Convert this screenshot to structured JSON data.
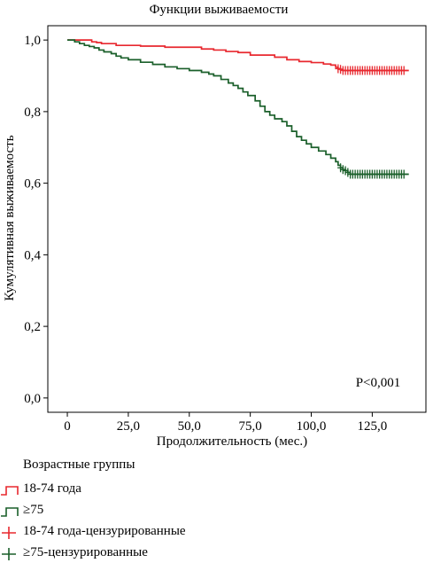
{
  "chart_data": {
    "type": "line",
    "title": "Функции выживаемости",
    "xlabel": "Продолжительность (мес.)",
    "ylabel": "Кумулятивная выживаемость",
    "xlim": [
      -8,
      147
    ],
    "ylim": [
      -0.04,
      1.04
    ],
    "xticks": [
      0,
      25,
      50,
      75,
      100,
      125
    ],
    "xtick_labels": [
      "0",
      "25,0",
      "50,0",
      "75,0",
      "100,0",
      "125,0"
    ],
    "yticks": [
      0,
      0.2,
      0.4,
      0.6,
      0.8,
      1.0
    ],
    "ytick_labels": [
      "0,0",
      "0,2",
      "0,4",
      "0,6",
      "0,8",
      "1,0"
    ],
    "annotation": "P<0,001",
    "grid": false,
    "legend_title": "Возрастные группы",
    "legend_position": "bottom-left",
    "series": [
      {
        "name": "18-74 года",
        "color": "#e8282f",
        "x": [
          0,
          8,
          10,
          12,
          14,
          20,
          30,
          40,
          55,
          60,
          65,
          70,
          75,
          85,
          90,
          95,
          100,
          105,
          108,
          110,
          111,
          112,
          113,
          140
        ],
        "y": [
          1.0,
          1.0,
          0.995,
          0.993,
          0.99,
          0.985,
          0.983,
          0.98,
          0.975,
          0.972,
          0.968,
          0.965,
          0.958,
          0.952,
          0.945,
          0.94,
          0.937,
          0.933,
          0.93,
          0.924,
          0.92,
          0.918,
          0.915,
          0.915
        ]
      },
      {
        "name": "≥75",
        "color": "#1a5f2a",
        "x": [
          0,
          3,
          5,
          7,
          9,
          11,
          13,
          15,
          18,
          20,
          22,
          25,
          30,
          35,
          40,
          45,
          50,
          55,
          58,
          60,
          63,
          66,
          68,
          70,
          72,
          74,
          77,
          79,
          81,
          83,
          85,
          88,
          90,
          92,
          94,
          96,
          98,
          100,
          103,
          106,
          108,
          110,
          111,
          112,
          113,
          114,
          115,
          116,
          140
        ],
        "y": [
          1.0,
          0.995,
          0.99,
          0.985,
          0.982,
          0.978,
          0.972,
          0.967,
          0.962,
          0.955,
          0.95,
          0.945,
          0.938,
          0.932,
          0.925,
          0.92,
          0.915,
          0.91,
          0.905,
          0.9,
          0.89,
          0.88,
          0.873,
          0.865,
          0.855,
          0.845,
          0.83,
          0.815,
          0.8,
          0.79,
          0.78,
          0.772,
          0.76,
          0.745,
          0.73,
          0.72,
          0.71,
          0.7,
          0.69,
          0.68,
          0.67,
          0.66,
          0.65,
          0.643,
          0.638,
          0.635,
          0.63,
          0.625,
          0.625
        ]
      },
      {
        "name": "18-74 года-цензурированные",
        "color": "#e8282f",
        "marker": "+",
        "x": [
          111,
          112,
          113,
          114,
          115,
          116,
          117,
          118,
          119,
          120,
          121,
          122,
          123,
          124,
          125,
          126,
          127,
          128,
          129,
          130,
          131,
          132,
          133,
          134,
          135,
          136,
          137,
          138
        ],
        "y": [
          0.92,
          0.918,
          0.915,
          0.915,
          0.915,
          0.915,
          0.915,
          0.915,
          0.915,
          0.915,
          0.915,
          0.915,
          0.915,
          0.915,
          0.915,
          0.915,
          0.915,
          0.915,
          0.915,
          0.915,
          0.915,
          0.915,
          0.915,
          0.915,
          0.915,
          0.915,
          0.915,
          0.915
        ]
      },
      {
        "name": "≥75-цензурированные",
        "color": "#1a5f2a",
        "marker": "+",
        "x": [
          112,
          113,
          114,
          115,
          116,
          117,
          118,
          119,
          120,
          121,
          122,
          123,
          124,
          125,
          126,
          127,
          128,
          129,
          130,
          131,
          132,
          133,
          134,
          135,
          136,
          137,
          138
        ],
        "y": [
          0.643,
          0.638,
          0.635,
          0.63,
          0.625,
          0.625,
          0.625,
          0.625,
          0.625,
          0.625,
          0.625,
          0.625,
          0.625,
          0.625,
          0.625,
          0.625,
          0.625,
          0.625,
          0.625,
          0.625,
          0.625,
          0.625,
          0.625,
          0.625,
          0.625,
          0.625,
          0.625
        ]
      }
    ]
  }
}
